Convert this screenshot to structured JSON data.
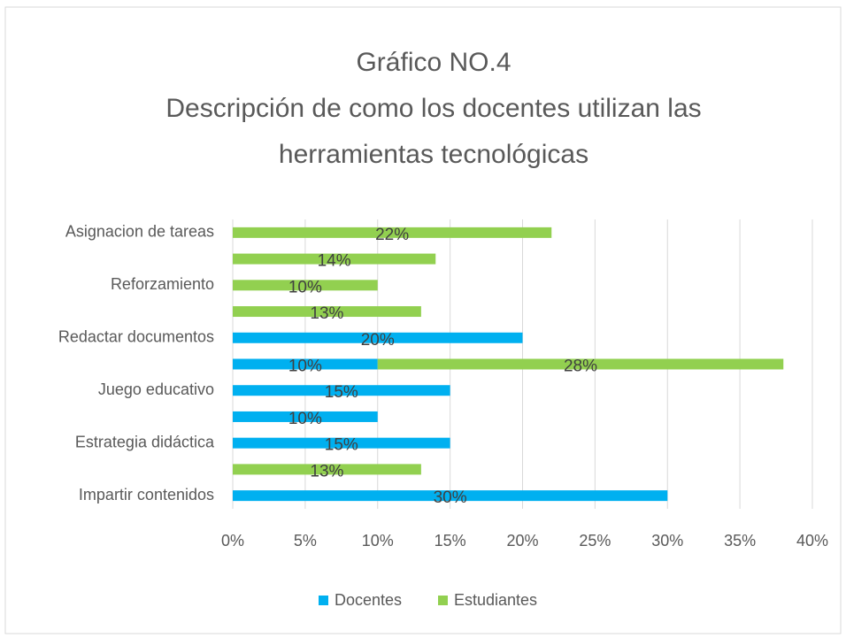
{
  "chart_data": {
    "type": "stacked-barh",
    "title": [
      "Gráfico NO.4",
      "Descripción de como los docentes utilizan las",
      "herramientas tecnológicas"
    ],
    "categories": [
      "Asignacion de tareas",
      null,
      "Reforzamiento",
      null,
      "Redactar documentos",
      null,
      "Juego educativo",
      null,
      "Estrategia didáctica",
      null,
      "Impartir contenidos"
    ],
    "series": [
      {
        "name": "Docentes",
        "color": "#00b0f0",
        "values": [
          null,
          null,
          null,
          null,
          20,
          10,
          15,
          10,
          15,
          null,
          30
        ],
        "value_labels": [
          null,
          null,
          null,
          null,
          "20%",
          "10%",
          "15%",
          "10%",
          "15%",
          null,
          "30%"
        ]
      },
      {
        "name": "Estudiantes",
        "color": "#92d050",
        "values": [
          22,
          14,
          10,
          13,
          null,
          28,
          null,
          null,
          null,
          13,
          null
        ],
        "value_labels": [
          "22%",
          "14%",
          "10%",
          "13%",
          null,
          "28%",
          null,
          null,
          null,
          "13%",
          null
        ]
      }
    ],
    "xlim": [
      0,
      40
    ],
    "xticks": [
      {
        "value": 0,
        "label": "0%"
      },
      {
        "value": 5,
        "label": "5%"
      },
      {
        "value": 10,
        "label": "10%"
      },
      {
        "value": 15,
        "label": "15%"
      },
      {
        "value": 20,
        "label": "20%"
      },
      {
        "value": 25,
        "label": "25%"
      },
      {
        "value": 30,
        "label": "30%"
      },
      {
        "value": 35,
        "label": "35%"
      },
      {
        "value": 40,
        "label": "40%"
      }
    ],
    "grid": true,
    "legend": "bottom"
  }
}
